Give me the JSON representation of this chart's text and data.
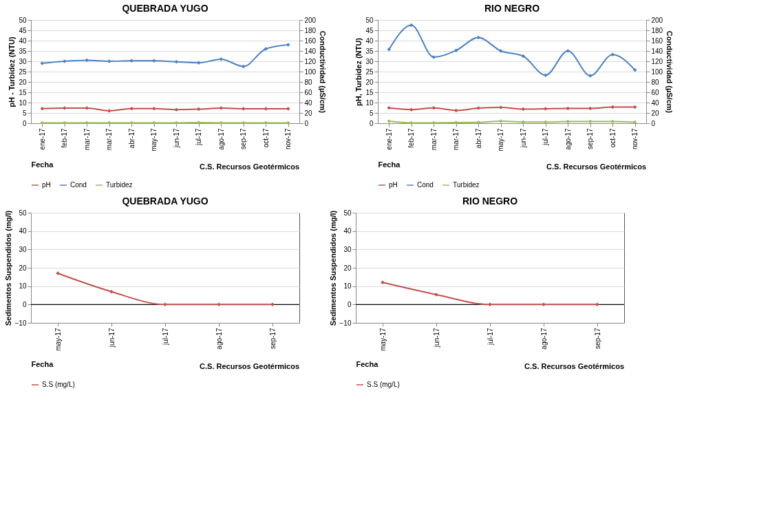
{
  "chart_data": [
    {
      "type": "line",
      "title": "QUEBRADA YUGO",
      "xlabel": "Fecha",
      "ylabel": "pH - Turbidez (NTU)",
      "y2label": "Conductividad (µS/cm)",
      "categories": [
        "ene-17",
        "feb-17",
        "mar-17",
        "mar-17",
        "abr-17",
        "may-17",
        "jun-17",
        "jul-17",
        "ago-17",
        "sep-17",
        "oct-17",
        "nov-17"
      ],
      "series": [
        {
          "name": "pH",
          "color": "#c0504d",
          "values": [
            7.1,
            7.3,
            7.3,
            6.0,
            7.1,
            7.1,
            6.6,
            6.8,
            7.3,
            7.0,
            7.0,
            7.0
          ]
        },
        {
          "name": "Cond",
          "color": "#4f81bd",
          "axis": "y2",
          "values": [
            116,
            120,
            122,
            120,
            121,
            121,
            119,
            117,
            124,
            110,
            144,
            152
          ]
        },
        {
          "name": "Turbidez",
          "color": "#9bbb59",
          "values": [
            0.2,
            0.2,
            0.2,
            0.2,
            0.2,
            0.2,
            0.2,
            0.3,
            0.2,
            0.2,
            0.2,
            0.2
          ]
        }
      ],
      "ylim": [
        0,
        50
      ],
      "yticks": [
        0,
        5,
        10,
        15,
        20,
        25,
        30,
        35,
        40,
        45,
        50
      ],
      "y2lim": [
        0,
        200
      ],
      "y2ticks": [
        0,
        20,
        40,
        60,
        80,
        100,
        120,
        140,
        160,
        180,
        200
      ],
      "grid": "y",
      "legend": "bottom",
      "marker": "diamond",
      "line_style": "solid",
      "annotations": [
        "C.S. Recursos Geotérmicos"
      ]
    },
    {
      "type": "line",
      "title": "RIO NEGRO",
      "xlabel": "Fecha",
      "ylabel": "pH, Turbidez (NTU)",
      "y2label": "Conductividad (µS/cm)",
      "categories": [
        "ene-17",
        "feb-17",
        "mar-17",
        "mar-17",
        "abr-17",
        "may-17",
        "jun-17",
        "jul-17",
        "ago-17",
        "sep-17",
        "oct-17",
        "nov-17"
      ],
      "series": [
        {
          "name": "pH",
          "color": "#c0504d",
          "values": [
            7.4,
            6.6,
            7.4,
            6.2,
            7.3,
            7.7,
            6.8,
            7.0,
            7.2,
            7.2,
            7.8,
            7.8
          ]
        },
        {
          "name": "Cond",
          "color": "#4f81bd",
          "axis": "y2",
          "values": [
            143,
            190,
            128,
            141,
            166,
            140,
            130,
            93,
            140,
            92,
            133,
            103
          ]
        },
        {
          "name": "Turbidez",
          "color": "#9bbb59",
          "values": [
            1.0,
            0.2,
            0.2,
            0.3,
            0.4,
            1.0,
            0.6,
            0.6,
            0.8,
            0.8,
            0.8,
            0.5
          ]
        }
      ],
      "ylim": [
        0,
        50
      ],
      "yticks": [
        0,
        5,
        10,
        15,
        20,
        25,
        30,
        35,
        40,
        45,
        50
      ],
      "y2lim": [
        0,
        200
      ],
      "y2ticks": [
        0,
        20,
        40,
        60,
        80,
        100,
        120,
        140,
        160,
        180,
        200
      ],
      "grid": "y",
      "legend": "bottom",
      "marker": "diamond",
      "line_style": "solid",
      "annotations": [
        "C.S. Recursos Geotérmicos"
      ]
    },
    {
      "type": "line",
      "title": "QUEBRADA YUGO",
      "xlabel": "Fecha",
      "ylabel": "Sedimentos Suspendidos (mg/l)",
      "categories": [
        "may-17",
        "jun-17",
        "jul-17",
        "ago-17",
        "sep-17"
      ],
      "series": [
        {
          "name": "S.S (mg/L)",
          "color": "#c0504d",
          "values": [
            17,
            7,
            0,
            0,
            0
          ]
        }
      ],
      "ylim": [
        -10,
        50
      ],
      "yticks": [
        -10,
        0,
        10,
        20,
        30,
        40,
        50
      ],
      "ref_lines": [
        {
          "axis": "y",
          "value": 0,
          "color": "#000000"
        }
      ],
      "grid": "y",
      "legend": "bottom",
      "marker": "diamond",
      "line_style": "solid",
      "annotations": [
        "C.S. Recursos Geotérmicos"
      ]
    },
    {
      "type": "line",
      "title": "RIO NEGRO",
      "xlabel": "Fecha",
      "ylabel": "Sedimentos Suspendidos (mg/l)",
      "categories": [
        "may-17",
        "jun-17",
        "jul-17",
        "ago-17",
        "sep-17"
      ],
      "series": [
        {
          "name": "S.S (mg/L)",
          "color": "#c0504d",
          "values": [
            12,
            5.4,
            0,
            0,
            0
          ]
        }
      ],
      "ylim": [
        -10,
        50
      ],
      "yticks": [
        -10,
        0,
        10,
        20,
        30,
        40,
        50
      ],
      "ref_lines": [
        {
          "axis": "y",
          "value": 0,
          "color": "#000000"
        }
      ],
      "grid": "y",
      "legend": "bottom",
      "marker": "diamond",
      "line_style": "solid",
      "annotations": [
        "C.S. Recursos Geotérmicos"
      ]
    }
  ]
}
